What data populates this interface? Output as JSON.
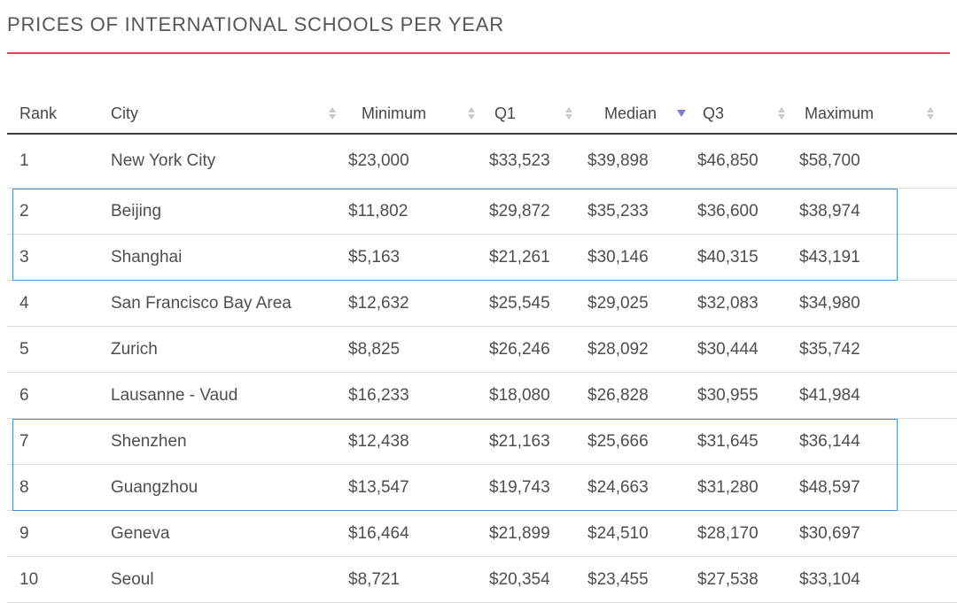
{
  "page": {
    "title": "PRICES OF INTERNATIONAL SCHOOLS PER YEAR",
    "accent_rule_color": "#e23e5b",
    "highlight_border_color": "#4292d4"
  },
  "table": {
    "columns": [
      {
        "key": "rank",
        "label": "Rank",
        "sortable": false,
        "sort": "none"
      },
      {
        "key": "city",
        "label": "City",
        "sortable": true,
        "sort": "none"
      },
      {
        "key": "minimum",
        "label": "Minimum",
        "sortable": true,
        "sort": "none"
      },
      {
        "key": "q1",
        "label": "Q1",
        "sortable": true,
        "sort": "none"
      },
      {
        "key": "median",
        "label": "Median",
        "sortable": true,
        "sort": "desc"
      },
      {
        "key": "q3",
        "label": "Q3",
        "sortable": true,
        "sort": "none"
      },
      {
        "key": "maximum",
        "label": "Maximum",
        "sortable": true,
        "sort": "none"
      }
    ],
    "rows": [
      {
        "rank": "1",
        "city": "New York City",
        "minimum": "$23,000",
        "q1": "$33,523",
        "median": "$39,898",
        "q3": "$46,850",
        "maximum": "$58,700",
        "highlighted": false
      },
      {
        "rank": "2",
        "city": "Beijing",
        "minimum": "$11,802",
        "q1": "$29,872",
        "median": "$35,233",
        "q3": "$36,600",
        "maximum": "$38,974",
        "highlighted": true
      },
      {
        "rank": "3",
        "city": "Shanghai",
        "minimum": "$5,163",
        "q1": "$21,261",
        "median": "$30,146",
        "q3": "$40,315",
        "maximum": "$43,191",
        "highlighted": true
      },
      {
        "rank": "4",
        "city": "San Francisco Bay Area",
        "minimum": "$12,632",
        "q1": "$25,545",
        "median": "$29,025",
        "q3": "$32,083",
        "maximum": "$34,980",
        "highlighted": false
      },
      {
        "rank": "5",
        "city": "Zurich",
        "minimum": "$8,825",
        "q1": "$26,246",
        "median": "$28,092",
        "q3": "$30,444",
        "maximum": "$35,742",
        "highlighted": false
      },
      {
        "rank": "6",
        "city": "Lausanne - Vaud",
        "minimum": "$16,233",
        "q1": "$18,080",
        "median": "$26,828",
        "q3": "$30,955",
        "maximum": "$41,984",
        "highlighted": false
      },
      {
        "rank": "7",
        "city": "Shenzhen",
        "minimum": "$12,438",
        "q1": "$21,163",
        "median": "$25,666",
        "q3": "$31,645",
        "maximum": "$36,144",
        "highlighted": true
      },
      {
        "rank": "8",
        "city": "Guangzhou",
        "minimum": "$13,547",
        "q1": "$19,743",
        "median": "$24,663",
        "q3": "$31,280",
        "maximum": "$48,597",
        "highlighted": true
      },
      {
        "rank": "9",
        "city": "Geneva",
        "minimum": "$16,464",
        "q1": "$21,899",
        "median": "$24,510",
        "q3": "$28,170",
        "maximum": "$30,697",
        "highlighted": false
      },
      {
        "rank": "10",
        "city": "Seoul",
        "minimum": "$8,721",
        "q1": "$20,354",
        "median": "$23,455",
        "q3": "$27,538",
        "maximum": "$33,104",
        "highlighted": false
      }
    ]
  },
  "chart_data": {
    "type": "table",
    "title": "PRICES OF INTERNATIONAL SCHOOLS PER YEAR",
    "columns": [
      "Rank",
      "City",
      "Minimum",
      "Q1",
      "Median",
      "Q3",
      "Maximum"
    ],
    "rows": [
      [
        1,
        "New York City",
        23000,
        33523,
        39898,
        46850,
        58700
      ],
      [
        2,
        "Beijing",
        11802,
        29872,
        35233,
        36600,
        38974
      ],
      [
        3,
        "Shanghai",
        5163,
        21261,
        30146,
        40315,
        43191
      ],
      [
        4,
        "San Francisco Bay Area",
        12632,
        25545,
        29025,
        32083,
        34980
      ],
      [
        5,
        "Zurich",
        8825,
        26246,
        28092,
        30444,
        35742
      ],
      [
        6,
        "Lausanne - Vaud",
        16233,
        18080,
        26828,
        30955,
        41984
      ],
      [
        7,
        "Shenzhen",
        12438,
        21163,
        25666,
        31645,
        36144
      ],
      [
        8,
        "Guangzhou",
        13547,
        19743,
        24663,
        31280,
        48597
      ],
      [
        9,
        "Geneva",
        16464,
        21899,
        24510,
        28170,
        30697
      ],
      [
        10,
        "Seoul",
        8721,
        20354,
        23455,
        27538,
        33104
      ]
    ],
    "units": "USD per year",
    "sorted_by": {
      "column": "Median",
      "direction": "desc"
    },
    "highlighted_ranks": [
      2,
      3,
      7,
      8
    ]
  }
}
